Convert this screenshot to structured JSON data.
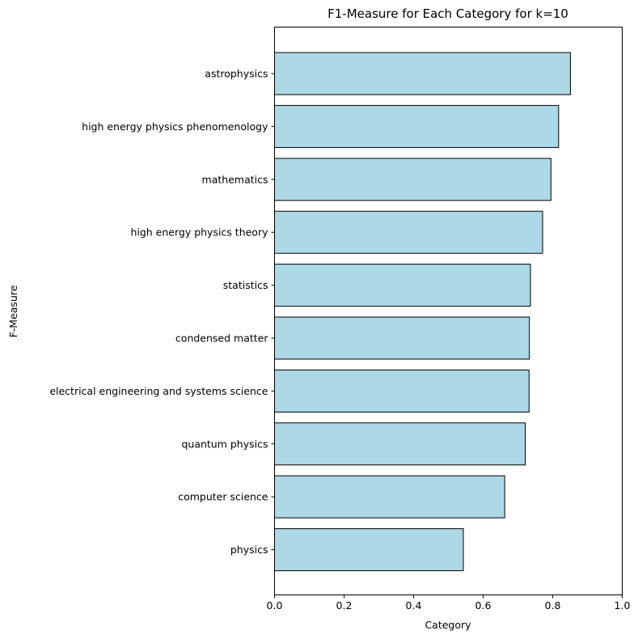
{
  "chart_data": {
    "type": "bar",
    "orientation": "horizontal",
    "title": "F1-Measure for Each Category for k=10",
    "xlabel": "Category",
    "ylabel": "F-Measure",
    "xlim": [
      0.0,
      1.0
    ],
    "xticks": [
      0.0,
      0.2,
      0.4,
      0.6,
      0.8,
      1.0
    ],
    "xtick_labels": [
      "0.0",
      "0.2",
      "0.4",
      "0.6",
      "0.8",
      "1.0"
    ],
    "grid": false,
    "bar_color": "#add8e6",
    "edge_color": "#000000",
    "categories": [
      "astrophysics",
      "high energy physics phenomenology",
      "mathematics",
      "high energy physics theory",
      "statistics",
      "condensed matter",
      "electrical engineering and systems science",
      "quantum physics",
      "computer science",
      "physics"
    ],
    "values": [
      0.851,
      0.817,
      0.795,
      0.771,
      0.736,
      0.733,
      0.732,
      0.721,
      0.662,
      0.543
    ]
  }
}
